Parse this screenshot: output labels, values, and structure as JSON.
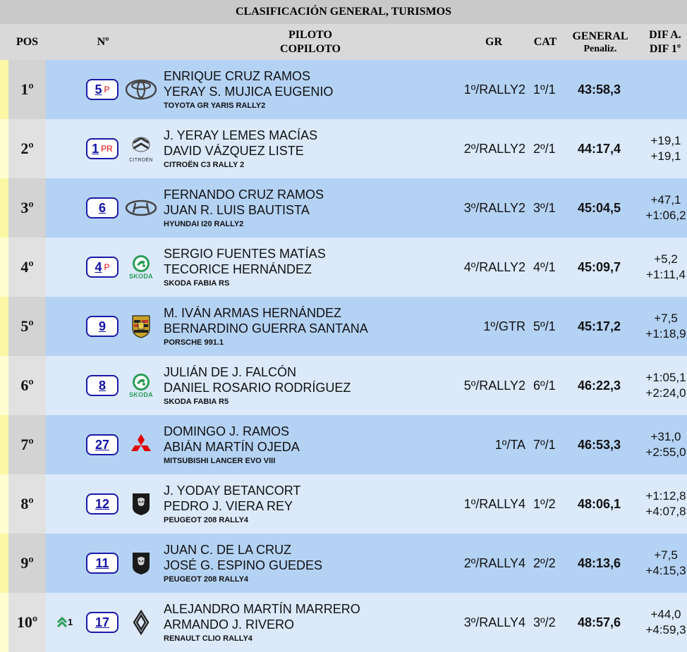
{
  "title": "CLASIFICACIÓN GENERAL, TURISMOS",
  "headers": {
    "pos": "POS",
    "num": "Nº",
    "piloto": "PILOTO",
    "copiloto": "COPILOTO",
    "gr": "GR",
    "cat": "CAT",
    "general": "GENERAL",
    "penaliz": "Penaliz.",
    "dif_a": "DIF A.",
    "dif_1": "DIF 1º"
  },
  "colors": {
    "title_bg": "#c9c9c9",
    "header_bg": "#d9d9d9",
    "row_odd": "#b4d2f4",
    "row_even": "#dbe9fb",
    "number_blue": "#1212a8",
    "badge_red": "#e00000"
  },
  "rows": [
    {
      "pos": "1º",
      "num": "5",
      "badge": "P",
      "logo": "toyota-logo",
      "logo_text": "",
      "driver": "ENRIQUE CRUZ RAMOS",
      "codriver": "YERAY S. MUJICA EUGENIO",
      "car": "TOYOTA GR YARIS RALLY2",
      "gr": "1º/RALLY2",
      "cat": "1º/1",
      "time": "43:58,3",
      "dif_a": "",
      "dif_1": ""
    },
    {
      "pos": "2º",
      "num": "1",
      "badge": "PR",
      "logo": "citroen-logo",
      "logo_text": "CITROËN",
      "driver": "J. YERAY LEMES MACÍAS",
      "codriver": "DAVID VÁZQUEZ LISTE",
      "car": "CITROËN C3 RALLY 2",
      "gr": "2º/RALLY2",
      "cat": "2º/1",
      "time": "44:17,4",
      "dif_a": "+19,1",
      "dif_1": "+19,1"
    },
    {
      "pos": "3º",
      "num": "6",
      "badge": "",
      "logo": "hyundai-logo",
      "logo_text": "",
      "driver": "FERNANDO CRUZ RAMOS",
      "codriver": "JUAN R. LUIS BAUTISTA",
      "car": "HYUNDAI I20 RALLY2",
      "gr": "3º/RALLY2",
      "cat": "3º/1",
      "time": "45:04,5",
      "dif_a": "+47,1",
      "dif_1": "+1:06,2"
    },
    {
      "pos": "4º",
      "num": "4",
      "badge": "P",
      "logo": "skoda-logo",
      "logo_text": "SKODA",
      "driver": "SERGIO FUENTES MATÍAS",
      "codriver": "TECORICE HERNÁNDEZ",
      "car": "SKODA FABIA RS",
      "gr": "4º/RALLY2",
      "cat": "4º/1",
      "time": "45:09,7",
      "dif_a": "+5,2",
      "dif_1": "+1:11,4"
    },
    {
      "pos": "5º",
      "num": "9",
      "badge": "",
      "logo": "porsche-logo",
      "logo_text": "",
      "driver": "M. IVÁN ARMAS HERNÁNDEZ",
      "codriver": "BERNARDINO GUERRA SANTANA",
      "car": "PORSCHE 991.1",
      "gr": "1º/GTR",
      "cat": "5º/1",
      "time": "45:17,2",
      "dif_a": "+7,5",
      "dif_1": "+1:18,9"
    },
    {
      "pos": "6º",
      "num": "8",
      "badge": "",
      "logo": "skoda-logo",
      "logo_text": "SKODA",
      "driver": "JULIÁN DE J. FALCÓN",
      "codriver": "DANIEL ROSARIO RODRÍGUEZ",
      "car": "SKODA FABIA R5",
      "gr": "5º/RALLY2",
      "cat": "6º/1",
      "time": "46:22,3",
      "dif_a": "+1:05,1",
      "dif_1": "+2:24,0"
    },
    {
      "pos": "7º",
      "num": "27",
      "badge": "",
      "logo": "mitsubishi-logo",
      "logo_text": "",
      "driver": "DOMINGO J. RAMOS",
      "codriver": "ABIÁN MARTÍN OJEDA",
      "car": "MITSUBISHI LANCER EVO VIII",
      "gr": "1º/TA",
      "cat": "7º/1",
      "time": "46:53,3",
      "dif_a": "+31,0",
      "dif_1": "+2:55,0"
    },
    {
      "pos": "8º",
      "num": "12",
      "badge": "",
      "logo": "peugeot-logo",
      "logo_text": "",
      "driver": "J. YODAY BETANCORT",
      "codriver": "PEDRO J. VIERA REY",
      "car": "PEUGEOT 208 RALLY4",
      "gr": "1º/RALLY4",
      "cat": "1º/2",
      "time": "48:06,1",
      "dif_a": "+1:12,8",
      "dif_1": "+4:07,8"
    },
    {
      "pos": "9º",
      "num": "11",
      "badge": "",
      "logo": "peugeot-logo",
      "logo_text": "",
      "driver": "JUAN C. DE LA CRUZ",
      "codriver": "JOSÉ G. ESPINO GUEDES",
      "car": "PEUGEOT 208 RALLY4",
      "gr": "2º/RALLY4",
      "cat": "2º/2",
      "time": "48:13,6",
      "dif_a": "+7,5",
      "dif_1": "+4:15,3"
    },
    {
      "pos": "10º",
      "num": "17",
      "badge": "",
      "logo": "renault-logo",
      "logo_text": "",
      "driver": "ALEJANDRO MARTÍN MARRERO",
      "codriver": "ARMANDO J. RIVERO",
      "car": "RENAULT CLIO RALLY4",
      "gr": "3º/RALLY4",
      "cat": "3º/2",
      "time": "48:57,6",
      "dif_a": "+44,0",
      "dif_1": "+4:59,3",
      "move": "1",
      "move_icon": "double-chevron-up-icon"
    }
  ]
}
